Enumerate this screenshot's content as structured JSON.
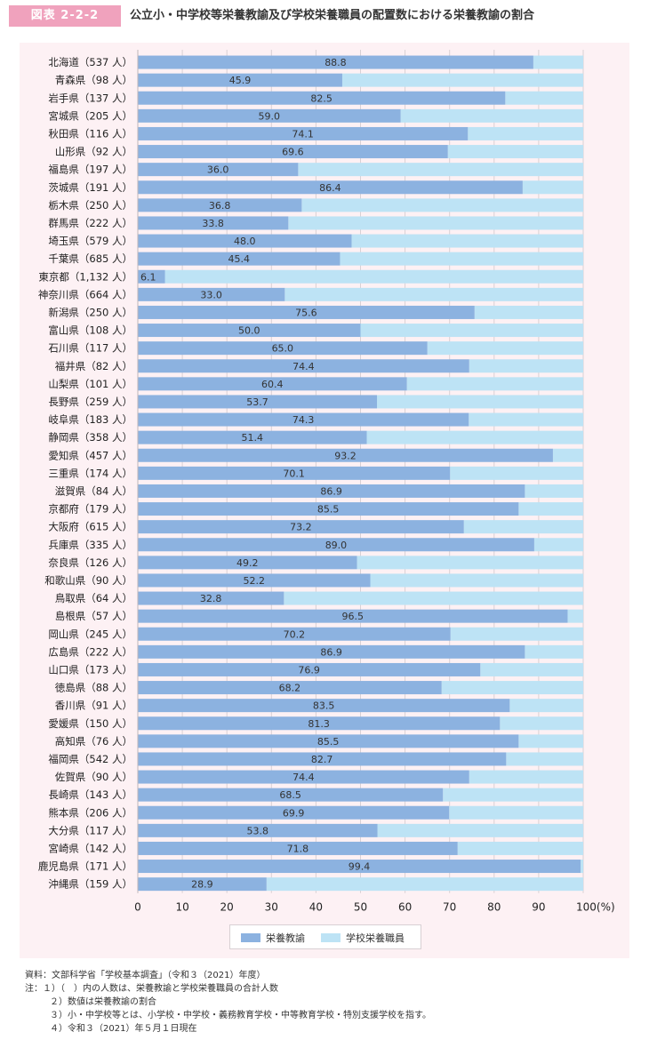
{
  "header": {
    "figure_tag": "図表 2-2-2",
    "title": "公立小・中学校等栄養教諭及び学校栄養職員の配置数における栄養教諭の割合"
  },
  "colors": {
    "teacher": "#8cb2e0",
    "staff": "#bde3f5",
    "tag": "#f0a2bd",
    "panel": "#fdf1f4"
  },
  "chart_data": {
    "type": "bar",
    "orientation": "horizontal",
    "stacked": true,
    "categories": [
      "北海道（537 人）",
      "青森県（98 人）",
      "岩手県（137 人）",
      "宮城県（205 人）",
      "秋田県（116 人）",
      "山形県（92 人）",
      "福島県（197 人）",
      "茨城県（191 人）",
      "栃木県（250 人）",
      "群馬県（222 人）",
      "埼玉県（579 人）",
      "千葉県（685 人）",
      "東京都（1,132 人）",
      "神奈川県（664 人）",
      "新潟県（250 人）",
      "富山県（108 人）",
      "石川県（117 人）",
      "福井県（82 人）",
      "山梨県（101 人）",
      "長野県（259 人）",
      "岐阜県（183 人）",
      "静岡県（358 人）",
      "愛知県（457 人）",
      "三重県（174 人）",
      "滋賀県（84 人）",
      "京都府（179 人）",
      "大阪府（615 人）",
      "兵庫県（335 人）",
      "奈良県（126 人）",
      "和歌山県（90 人）",
      "鳥取県（64 人）",
      "島根県（57 人）",
      "岡山県（245 人）",
      "広島県（222 人）",
      "山口県（173 人）",
      "徳島県（88 人）",
      "香川県（91 人）",
      "愛媛県（150 人）",
      "高知県（76 人）",
      "福岡県（542 人）",
      "佐賀県（90 人）",
      "長崎県（143 人）",
      "熊本県（206 人）",
      "大分県（117 人）",
      "宮崎県（142 人）",
      "鹿児島県（171 人）",
      "沖縄県（159 人）"
    ],
    "series": [
      {
        "name": "栄養教諭",
        "values": [
          88.8,
          45.9,
          82.5,
          59.0,
          74.1,
          69.6,
          36.0,
          86.4,
          36.8,
          33.8,
          48.0,
          45.4,
          6.1,
          33.0,
          75.6,
          50.0,
          65.0,
          74.4,
          60.4,
          53.7,
          74.3,
          51.4,
          93.2,
          70.1,
          86.9,
          85.5,
          73.2,
          89.0,
          49.2,
          52.2,
          32.8,
          96.5,
          70.2,
          86.9,
          76.9,
          68.2,
          83.5,
          81.3,
          85.5,
          82.7,
          74.4,
          68.5,
          69.9,
          53.8,
          71.8,
          99.4,
          28.9
        ]
      },
      {
        "name": "学校栄養職員",
        "values": [
          11.2,
          54.1,
          17.5,
          41.0,
          25.9,
          30.4,
          64.0,
          13.6,
          63.2,
          66.2,
          52.0,
          54.6,
          93.9,
          67.0,
          24.4,
          50.0,
          35.0,
          25.6,
          39.6,
          46.3,
          25.7,
          48.6,
          6.8,
          29.9,
          13.1,
          14.5,
          26.8,
          11.0,
          50.8,
          47.8,
          67.2,
          3.5,
          29.8,
          13.1,
          23.1,
          31.8,
          16.5,
          18.7,
          14.5,
          17.3,
          25.6,
          31.5,
          30.1,
          46.2,
          28.2,
          0.6,
          71.1
        ]
      }
    ],
    "data_labels": [
      "88.8",
      "45.9",
      "82.5",
      "59.0",
      "74.1",
      "69.6",
      "36.0",
      "86.4",
      "36.8",
      "33.8",
      "48.0",
      "45.4",
      "6.1",
      "33.0",
      "75.6",
      "50.0",
      "65.0",
      "74.4",
      "60.4",
      "53.7",
      "74.3",
      "51.4",
      "93.2",
      "70.1",
      "86.9",
      "85.5",
      "73.2",
      "89.0",
      "49.2",
      "52.2",
      "32.8",
      "96.5",
      "70.2",
      "86.9",
      "76.9",
      "68.2",
      "83.5",
      "81.3",
      "85.5",
      "82.7",
      "74.4",
      "68.5",
      "69.9",
      "53.8",
      "71.8",
      "99.4",
      "28.9"
    ],
    "xlim": [
      0,
      100
    ],
    "x_ticks": [
      "0",
      "10",
      "20",
      "30",
      "40",
      "50",
      "60",
      "70",
      "80",
      "90",
      "100(%)"
    ],
    "grid": true,
    "legend": {
      "placement": "bottom-center",
      "entries": [
        "栄養教諭",
        "学校栄養職員"
      ]
    }
  },
  "notes": [
    "資料：文部科学省「学校基本調査」（令和３（2021）年度）",
    "注：１）（　）内の人数は、栄養教諭と学校栄養職員の合計人数",
    "２）数値は栄養教諭の割合",
    "３）小・中学校等とは、小学校・中学校・義務教育学校・中等教育学校・特別支援学校を指す。",
    "４）令和３（2021）年５月１日現在"
  ]
}
